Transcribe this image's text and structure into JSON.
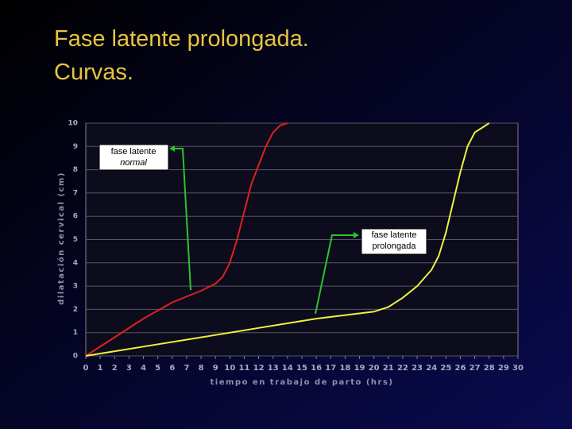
{
  "chart_data": {
    "type": "line",
    "title_lines": [
      "Fase latente prolongada.",
      "Curvas."
    ],
    "xlabel": "tiempo en trabajo de parto (hrs)",
    "ylabel": "dilatación cervical (cm)",
    "xlim": [
      0,
      30
    ],
    "ylim": [
      0,
      10
    ],
    "xticks": [
      0,
      1,
      2,
      3,
      4,
      5,
      6,
      7,
      8,
      9,
      10,
      11,
      12,
      13,
      14,
      15,
      16,
      17,
      18,
      19,
      20,
      21,
      22,
      23,
      24,
      25,
      26,
      27,
      28,
      29,
      30
    ],
    "yticks": [
      0,
      1,
      2,
      3,
      4,
      5,
      6,
      7,
      8,
      9,
      10
    ],
    "grid": true,
    "series": [
      {
        "color": "#e02020",
        "x": [
          0,
          2,
          4,
          6,
          8,
          9,
          9.5,
          10,
          10.5,
          11,
          11.5,
          12,
          12.5,
          13,
          13.5,
          14
        ],
        "values": [
          0,
          0.8,
          1.6,
          2.3,
          2.8,
          3.1,
          3.4,
          4.0,
          5.0,
          6.2,
          7.4,
          8.2,
          9.0,
          9.6,
          9.9,
          10
        ]
      },
      {
        "color": "#f0f040",
        "x": [
          0,
          4,
          8,
          12,
          16,
          20,
          21,
          22,
          23,
          24,
          24.5,
          25,
          25.5,
          26,
          26.5,
          27,
          27.5,
          28
        ],
        "values": [
          0,
          0.4,
          0.8,
          1.2,
          1.6,
          1.9,
          2.1,
          2.5,
          3.0,
          3.7,
          4.3,
          5.3,
          6.6,
          7.9,
          9.0,
          9.6,
          9.8,
          10
        ]
      }
    ],
    "annotations": [
      {
        "lines": [
          "fase latente",
          "normal"
        ]
      },
      {
        "lines": [
          "fase latente",
          "prolongada"
        ]
      }
    ]
  }
}
